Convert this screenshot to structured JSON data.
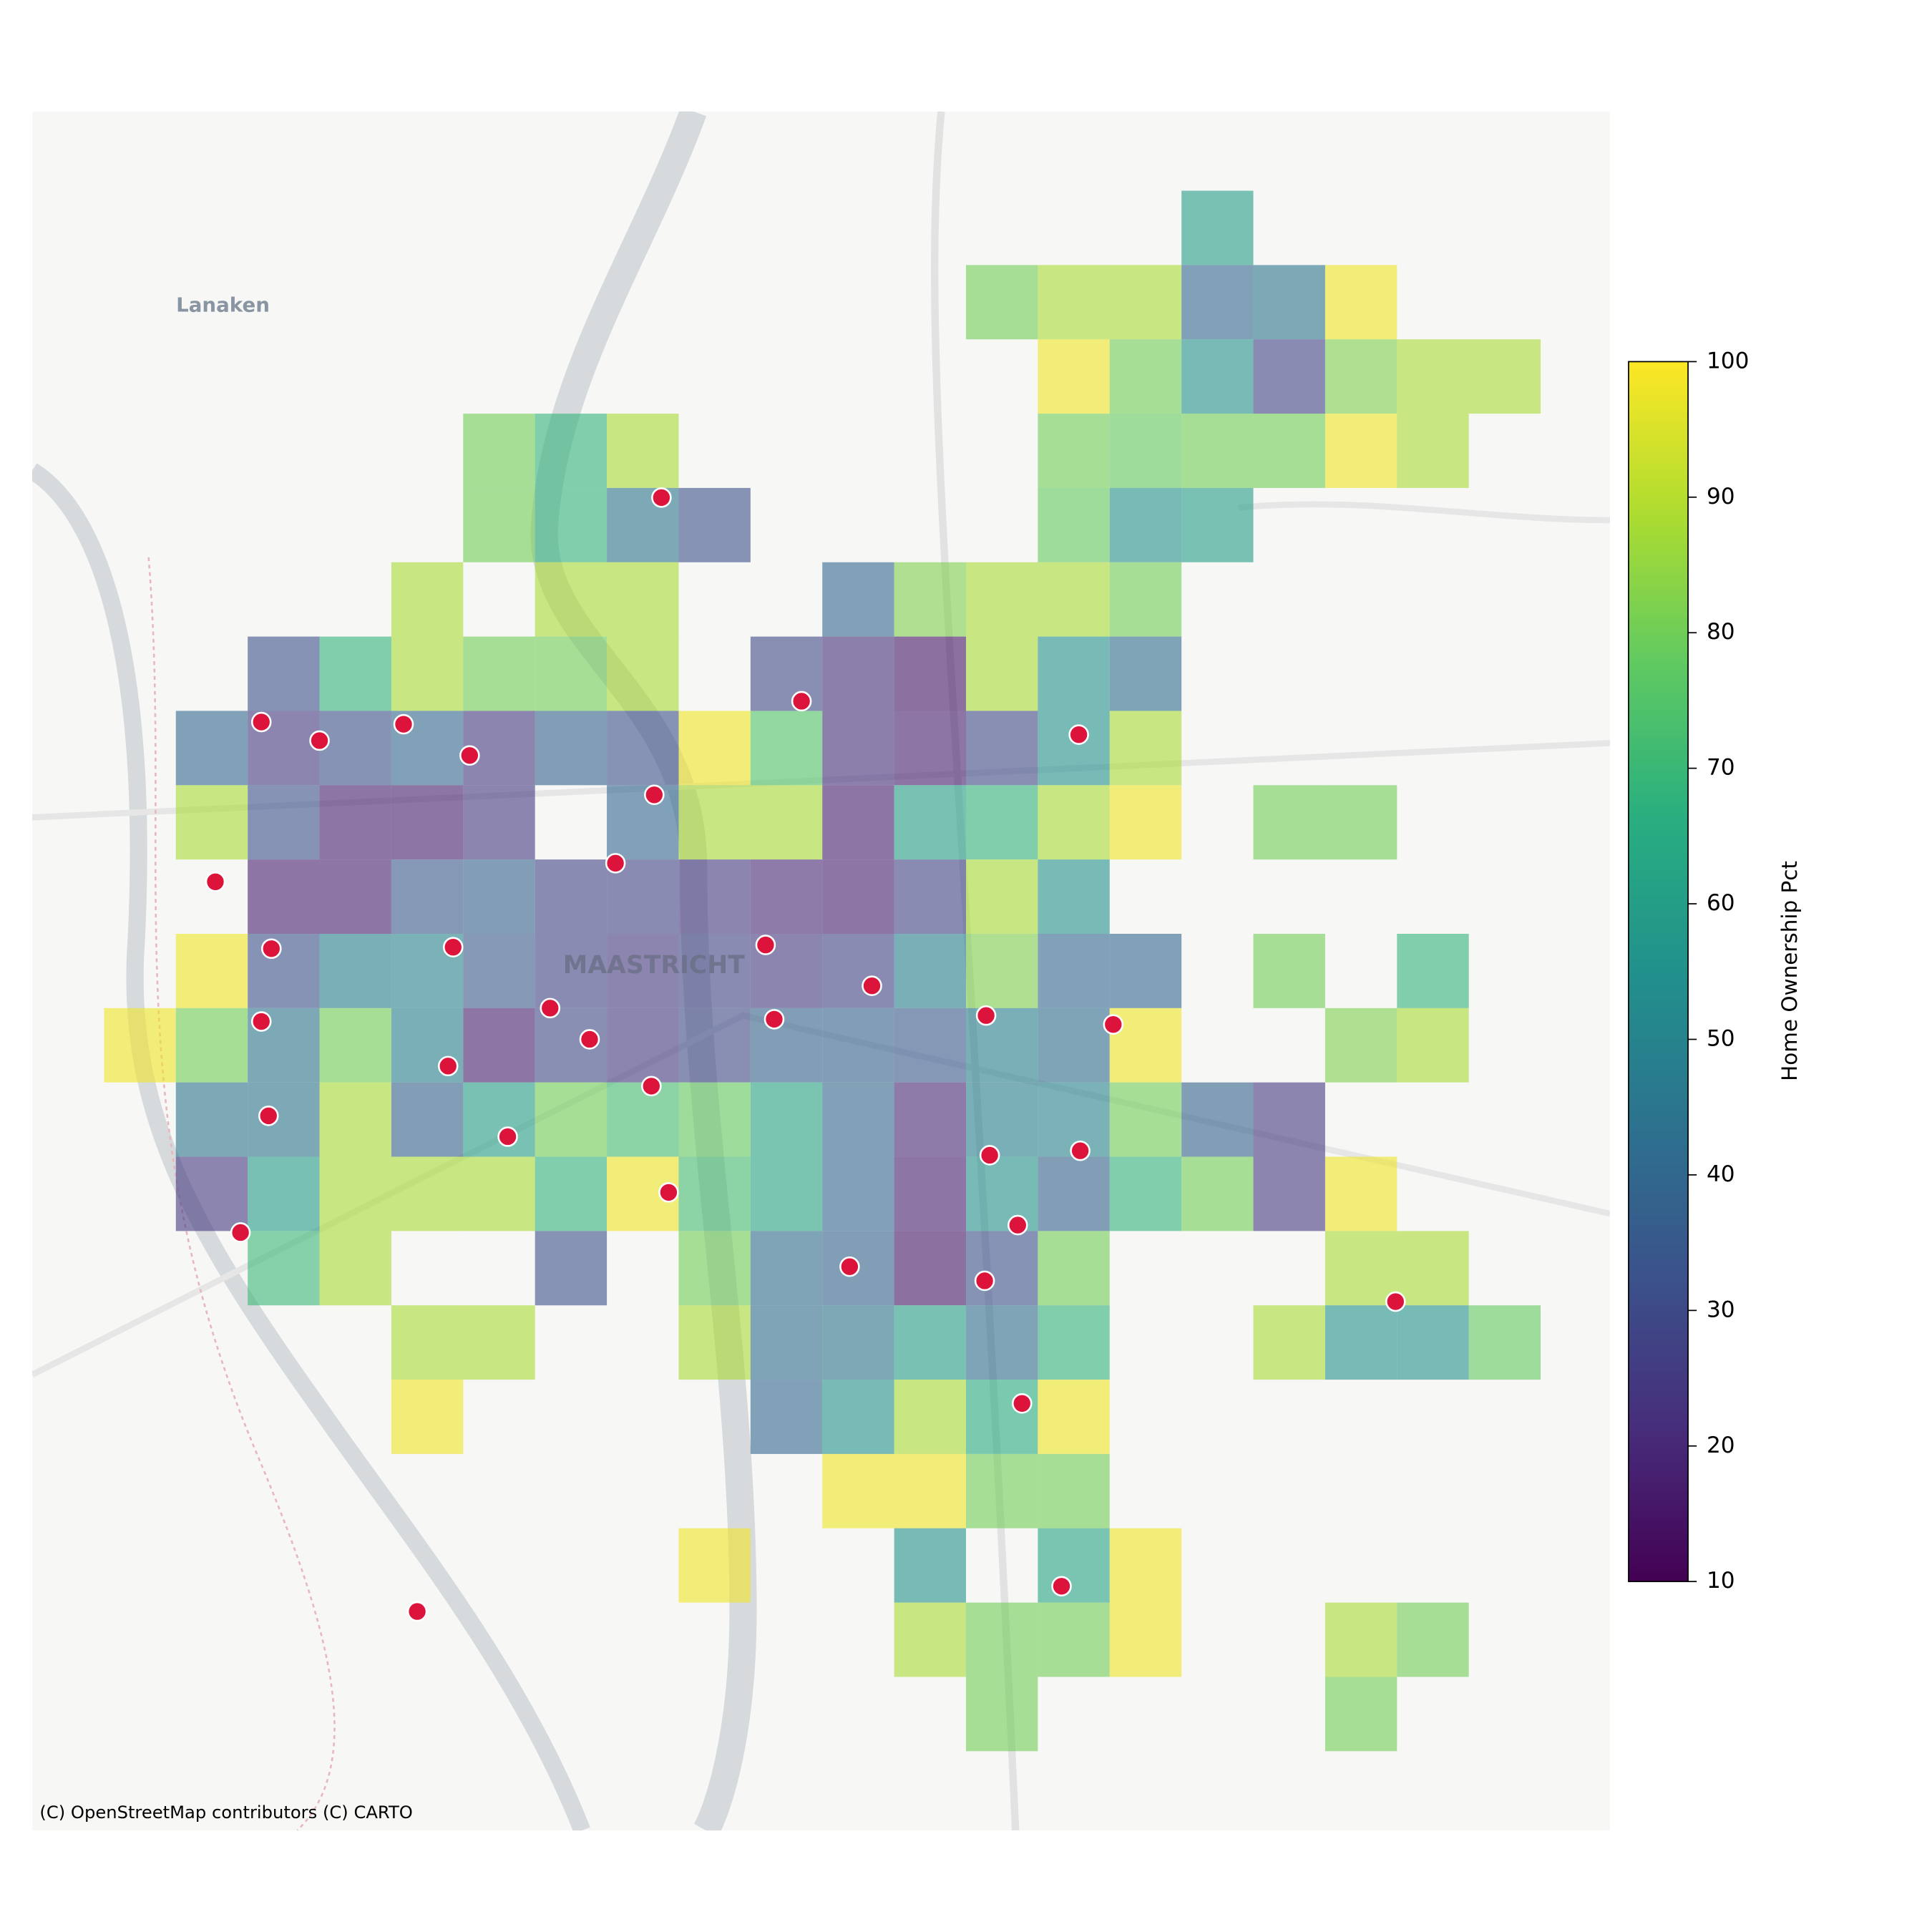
{
  "map": {
    "place_labels": [
      "Lanaken",
      "MAASTRICHT"
    ],
    "attribution": "(C) OpenStreetMap contributors (C) CARTO",
    "cell_opacity": 0.6,
    "point_color": "#dc143c",
    "colorbar": {
      "label": "Home Ownership Pct",
      "lim": [
        10,
        100
      ],
      "ticks": [
        10,
        20,
        30,
        40,
        50,
        60,
        70,
        80,
        90,
        100
      ]
    },
    "rows": [
      [
        null,
        null,
        null,
        null,
        null,
        null,
        null,
        null,
        null,
        null,
        null,
        null,
        null,
        null,
        null,
        60,
        null,
        null,
        null,
        null
      ],
      [
        null,
        null,
        null,
        null,
        null,
        null,
        null,
        null,
        null,
        null,
        null,
        null,
        80,
        88,
        88,
        40,
        45,
        98,
        null,
        null
      ],
      [
        null,
        null,
        null,
        null,
        null,
        null,
        null,
        null,
        null,
        null,
        null,
        null,
        null,
        98,
        80,
        55,
        28,
        82,
        88,
        88
      ],
      [
        null,
        null,
        null,
        null,
        null,
        80,
        68,
        88,
        null,
        null,
        null,
        null,
        null,
        80,
        78,
        80,
        80,
        98,
        88,
        null
      ],
      [
        null,
        null,
        null,
        null,
        null,
        80,
        68,
        45,
        32,
        null,
        null,
        null,
        null,
        78,
        55,
        60,
        null,
        null,
        null,
        null
      ],
      [
        null,
        null,
        null,
        null,
        88,
        null,
        88,
        88,
        null,
        null,
        40,
        82,
        88,
        88,
        80,
        null,
        null,
        null,
        null,
        null
      ],
      [
        null,
        null,
        32,
        68,
        88,
        80,
        80,
        88,
        null,
        30,
        22,
        15,
        88,
        55,
        42,
        null,
        null,
        null,
        null,
        null
      ],
      [
        null,
        40,
        25,
        32,
        40,
        25,
        38,
        32,
        98,
        75,
        22,
        18,
        30,
        55,
        88,
        null,
        null,
        null,
        null,
        null
      ],
      [
        null,
        88,
        32,
        18,
        18,
        25,
        null,
        40,
        88,
        88,
        18,
        60,
        68,
        88,
        98,
        null,
        80,
        80,
        null,
        null
      ],
      [
        null,
        null,
        18,
        18,
        35,
        38,
        28,
        28,
        25,
        20,
        18,
        28,
        88,
        55,
        null,
        null,
        null,
        null,
        null,
        null
      ],
      [
        null,
        98,
        32,
        48,
        50,
        35,
        28,
        25,
        28,
        25,
        28,
        48,
        82,
        40,
        40,
        null,
        80,
        null,
        68,
        null
      ],
      [
        98,
        80,
        45,
        80,
        48,
        18,
        30,
        25,
        30,
        38,
        38,
        35,
        48,
        42,
        98,
        null,
        null,
        82,
        88,
        null
      ],
      [
        null,
        45,
        45,
        88,
        38,
        60,
        80,
        72,
        78,
        62,
        40,
        20,
        48,
        50,
        80,
        38,
        25,
        null,
        null,
        null
      ],
      [
        null,
        25,
        58,
        88,
        88,
        88,
        68,
        98,
        72,
        62,
        40,
        18,
        55,
        38,
        68,
        80,
        25,
        98,
        null,
        null
      ],
      [
        null,
        null,
        70,
        88,
        null,
        null,
        32,
        null,
        80,
        42,
        38,
        15,
        32,
        80,
        null,
        null,
        null,
        88,
        88,
        null
      ],
      [
        null,
        null,
        null,
        null,
        88,
        88,
        null,
        null,
        88,
        42,
        45,
        60,
        42,
        68,
        null,
        null,
        88,
        55,
        55,
        78
      ],
      [
        null,
        null,
        null,
        null,
        98,
        null,
        null,
        null,
        null,
        40,
        55,
        88,
        65,
        98,
        null,
        null,
        null,
        null,
        null,
        null
      ],
      [
        null,
        null,
        null,
        null,
        null,
        null,
        null,
        null,
        null,
        null,
        98,
        98,
        80,
        80,
        null,
        null,
        null,
        null,
        null,
        null
      ],
      [
        null,
        null,
        null,
        null,
        null,
        null,
        null,
        null,
        98,
        null,
        null,
        55,
        null,
        62,
        98,
        null,
        null,
        null,
        null,
        null
      ],
      [
        null,
        null,
        null,
        null,
        null,
        null,
        null,
        null,
        null,
        null,
        null,
        88,
        80,
        80,
        98,
        null,
        null,
        88,
        80,
        null
      ],
      [
        null,
        null,
        null,
        null,
        null,
        null,
        null,
        null,
        null,
        null,
        null,
        null,
        80,
        null,
        null,
        null,
        null,
        80,
        null,
        null
      ]
    ],
    "points": [
      {
        "x": 7.76,
        "y": 4.13
      },
      {
        "x": 9.71,
        "y": 6.87
      },
      {
        "x": 2.19,
        "y": 7.15
      },
      {
        "x": 3.0,
        "y": 7.4
      },
      {
        "x": 4.17,
        "y": 7.18
      },
      {
        "x": 5.09,
        "y": 7.6
      },
      {
        "x": 13.57,
        "y": 7.32
      },
      {
        "x": 7.66,
        "y": 8.13
      },
      {
        "x": 1.55,
        "y": 9.3
      },
      {
        "x": 7.12,
        "y": 9.05
      },
      {
        "x": 2.33,
        "y": 10.2
      },
      {
        "x": 4.86,
        "y": 10.18
      },
      {
        "x": 9.21,
        "y": 10.15
      },
      {
        "x": 10.69,
        "y": 10.7
      },
      {
        "x": 2.19,
        "y": 11.18
      },
      {
        "x": 6.21,
        "y": 11.0
      },
      {
        "x": 6.76,
        "y": 11.42
      },
      {
        "x": 9.33,
        "y": 11.15
      },
      {
        "x": 12.28,
        "y": 11.1
      },
      {
        "x": 14.05,
        "y": 11.22
      },
      {
        "x": 4.79,
        "y": 11.78
      },
      {
        "x": 7.62,
        "y": 12.05
      },
      {
        "x": 2.29,
        "y": 12.45
      },
      {
        "x": 5.62,
        "y": 12.73
      },
      {
        "x": 12.33,
        "y": 12.98
      },
      {
        "x": 13.59,
        "y": 12.92
      },
      {
        "x": 7.86,
        "y": 13.48
      },
      {
        "x": 1.9,
        "y": 14.02
      },
      {
        "x": 12.72,
        "y": 13.92
      },
      {
        "x": 10.38,
        "y": 14.48
      },
      {
        "x": 12.26,
        "y": 14.67
      },
      {
        "x": 17.98,
        "y": 14.95
      },
      {
        "x": 12.78,
        "y": 16.32
      },
      {
        "x": 13.33,
        "y": 18.78
      },
      {
        "x": 4.36,
        "y": 19.12
      }
    ]
  }
}
